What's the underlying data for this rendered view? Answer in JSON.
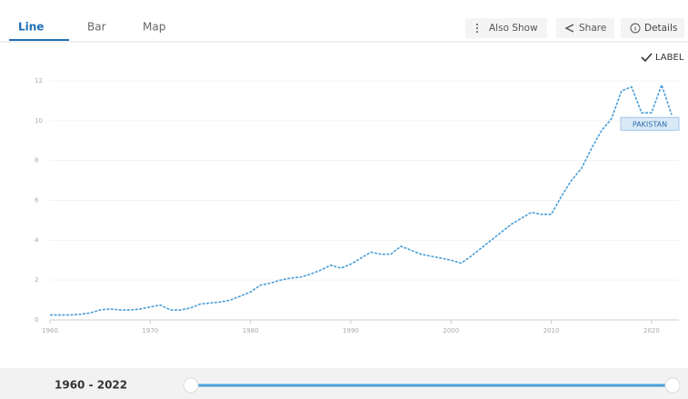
{
  "tabs": [
    "Line",
    "Bar",
    "Map"
  ],
  "buttons": [
    "Also Show",
    "Share",
    "Details"
  ],
  "label_toggle": "LABEL",
  "range_label": "1960 - 2022",
  "chart_data": {
    "type": "line",
    "x": [
      1960,
      1961,
      1962,
      1963,
      1964,
      1965,
      1966,
      1967,
      1968,
      1969,
      1970,
      1971,
      1972,
      1973,
      1974,
      1975,
      1976,
      1977,
      1978,
      1979,
      1980,
      1981,
      1982,
      1983,
      1984,
      1985,
      1986,
      1987,
      1988,
      1989,
      1990,
      1991,
      1992,
      1993,
      1994,
      1995,
      1996,
      1997,
      1998,
      1999,
      2000,
      2001,
      2002,
      2003,
      2004,
      2005,
      2006,
      2007,
      2008,
      2009,
      2010,
      2011,
      2012,
      2013,
      2014,
      2015,
      2016,
      2017,
      2018,
      2019,
      2020,
      2021,
      2022
    ],
    "series": [
      {
        "name": "PAKISTAN",
        "color": "#4a9fd8",
        "values": [
          0.25,
          0.25,
          0.25,
          0.28,
          0.35,
          0.5,
          0.55,
          0.5,
          0.5,
          0.55,
          0.65,
          0.75,
          0.5,
          0.5,
          0.6,
          0.8,
          0.85,
          0.9,
          1.0,
          1.2,
          1.4,
          1.75,
          1.85,
          2.0,
          2.1,
          2.15,
          2.3,
          2.5,
          2.75,
          2.6,
          2.8,
          3.1,
          3.4,
          3.3,
          3.3,
          3.7,
          3.5,
          3.3,
          3.2,
          3.1,
          3.0,
          2.85,
          3.2,
          3.6,
          4.0,
          4.4,
          4.8,
          5.1,
          5.4,
          5.3,
          5.3,
          6.2,
          7.0,
          7.6,
          8.6,
          9.5,
          10.1,
          11.5,
          11.7,
          10.4,
          10.4,
          11.8,
          10.3
        ]
      }
    ],
    "xlim": [
      1960,
      2022
    ],
    "ylim": [
      0,
      12
    ],
    "xticks": [
      1960,
      1970,
      1980,
      1990,
      2000,
      2010,
      2020
    ],
    "yticks": [
      0,
      2,
      4,
      6,
      8,
      10,
      12
    ]
  }
}
